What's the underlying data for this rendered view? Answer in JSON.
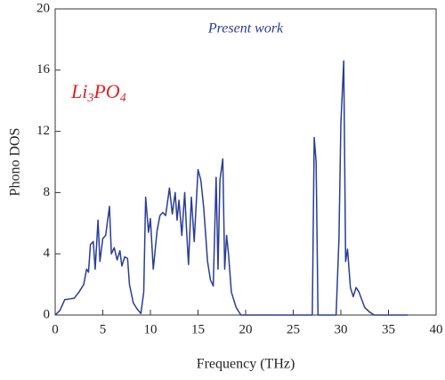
{
  "chart_data": {
    "type": "line",
    "xlabel": "Frequency (THz)",
    "ylabel": "Phono DOS",
    "annotation": "Present work",
    "formula": [
      "Li",
      "3",
      "PO",
      "4"
    ],
    "x": [
      0,
      0.5,
      1,
      1.5,
      2,
      2.5,
      3,
      3.3,
      3.5,
      3.7,
      4,
      4.2,
      4.5,
      4.7,
      5,
      5.3,
      5.7,
      5.9,
      6.2,
      6.5,
      6.8,
      7,
      7.3,
      7.6,
      7.8,
      8.2,
      8.6,
      9,
      9.3,
      9.5,
      9.8,
      10,
      10.3,
      10.7,
      11,
      11.3,
      11.6,
      12,
      12.3,
      12.6,
      12.8,
      13,
      13.3,
      13.6,
      13.8,
      14,
      14.3,
      14.6,
      15,
      15.3,
      15.6,
      16,
      16.3,
      16.6,
      16.9,
      17.1,
      17.3,
      17.6,
      17.8,
      18,
      18.2,
      18.5,
      19,
      19.5,
      27,
      27.2,
      27.4,
      27.6,
      29.5,
      29.8,
      30,
      30.3,
      30.5,
      30.7,
      31,
      31.3,
      31.6,
      31.9,
      32.5,
      33,
      33.5,
      37
    ],
    "series": [
      {
        "color": "#2a3d96",
        "values": [
          0,
          0.3,
          1,
          1.05,
          1.1,
          1.5,
          2,
          3,
          2.8,
          4.6,
          4.8,
          3,
          6.2,
          3.5,
          5,
          5.2,
          7.1,
          4,
          4.4,
          3.6,
          4.2,
          3.2,
          3.8,
          3.7,
          2,
          0.8,
          0.4,
          0.1,
          1.5,
          7.7,
          5.4,
          6.3,
          3,
          5.5,
          6.5,
          6.7,
          6.5,
          8.3,
          6.6,
          8,
          6.2,
          7.5,
          5.2,
          8,
          5.5,
          3.3,
          7.7,
          4.8,
          9.5,
          8.8,
          7,
          3.5,
          2.3,
          1.9,
          9,
          3,
          8.8,
          10.2,
          3,
          5.2,
          4,
          1.5,
          0.5,
          0,
          0,
          11.6,
          10,
          0,
          0,
          5,
          12.5,
          16.6,
          3.5,
          4.3,
          1.8,
          1.2,
          1.8,
          1.5,
          0.5,
          0.2,
          0,
          0
        ]
      }
    ],
    "xlim": [
      0,
      40
    ],
    "xticks": [
      0,
      5,
      10,
      15,
      20,
      25,
      30,
      35,
      40
    ],
    "ylim": [
      0,
      20
    ],
    "yticks": [
      0,
      4,
      8,
      12,
      16,
      20
    ]
  }
}
